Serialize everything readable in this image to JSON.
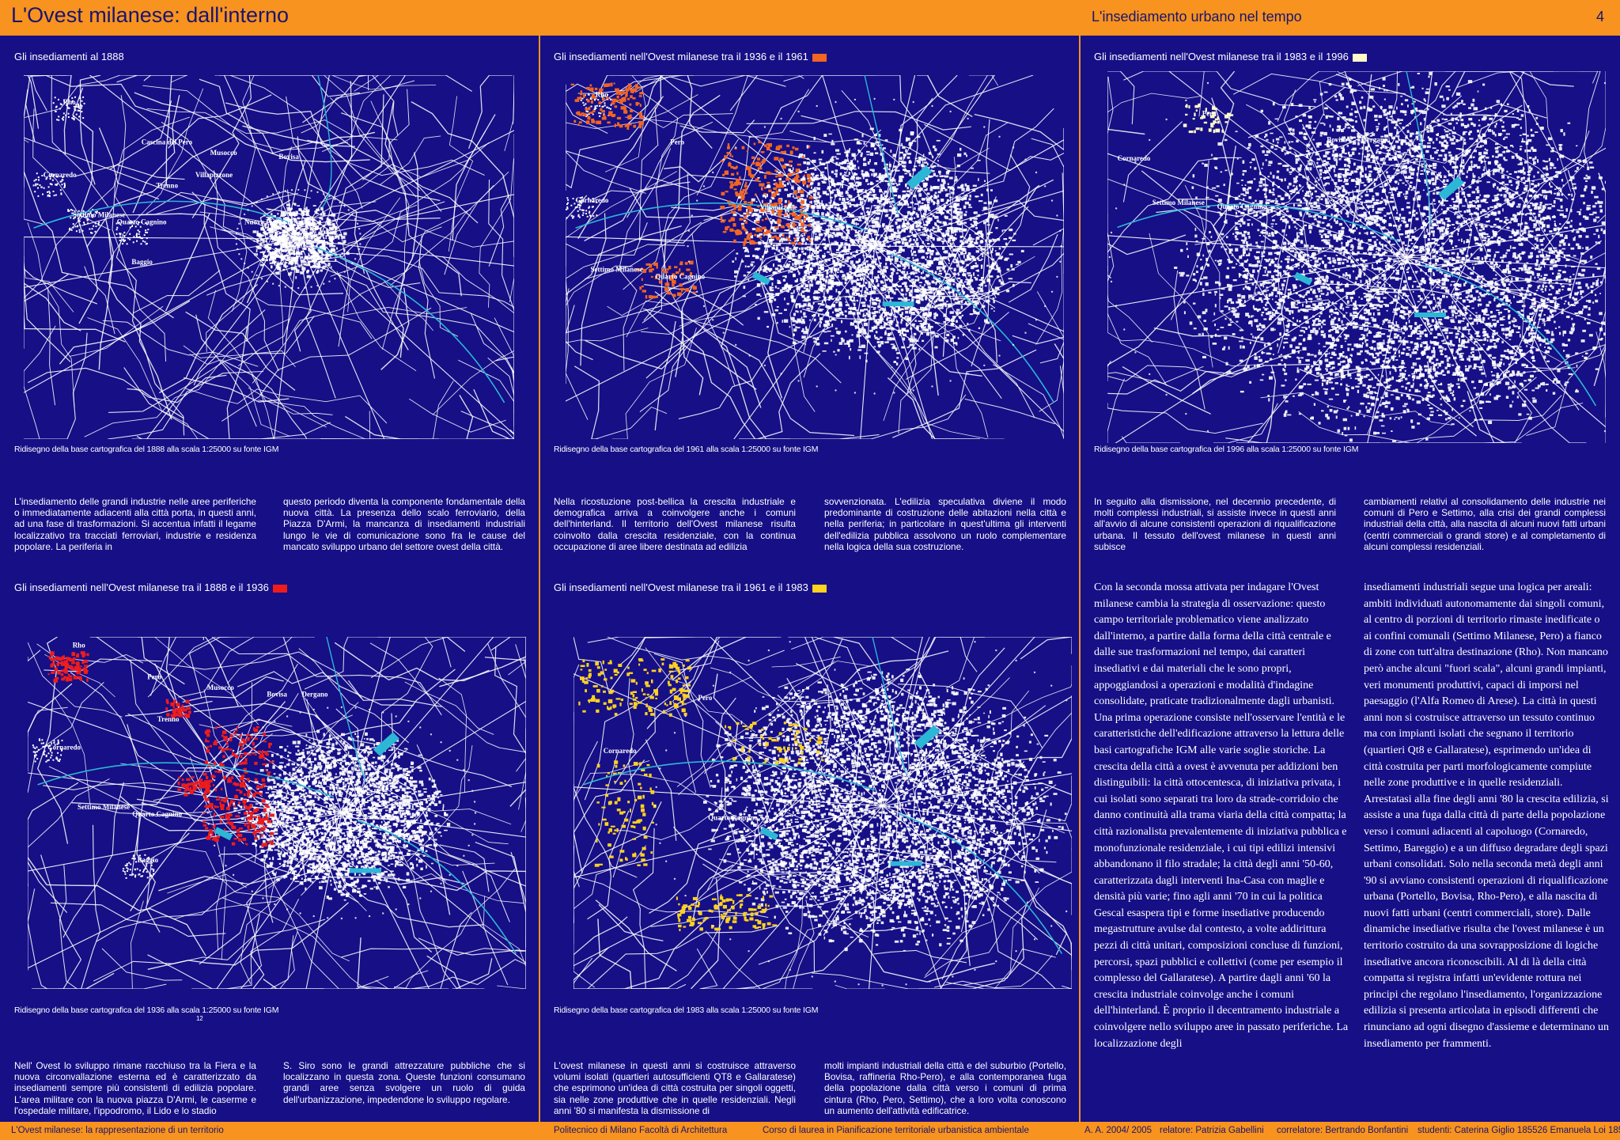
{
  "header": {
    "title": "L'Ovest milanese: dall'interno",
    "section": "L'insediamento urbano nel tempo",
    "page_number": "4"
  },
  "panels": {
    "p1888": {
      "title": "Gli insediamenti al 1888",
      "caption": "Ridisegno della base cartografica del 1888 alla scala 1:25000 su fonte IGM",
      "labels": [
        "Rho",
        "Cascina del Pero",
        "Musocco",
        "Bovisa",
        "Cornaredo",
        "Trenno",
        "Villapizzone",
        "Settimo Milanese",
        "Quarto Cagnino",
        "Nuova Piazza d'Armi",
        "Vecchia d'Armi",
        "Baggio"
      ]
    },
    "p1936": {
      "title": "Gli insediamenti nell'Ovest milanese tra il 1888 e il 1936",
      "swatch": "#ee1c1c",
      "caption": "Ridisegno della base cartografica del 1936 alla scala 1:25000 su fonte IGM",
      "caption_sub": "12",
      "labels": [
        "Rho",
        "Pero",
        "Musocco",
        "Bovisa",
        "Dergano",
        "Cornaredo",
        "Trenno",
        "Settimo Milanese",
        "Quarto Cagnino",
        "Baggio"
      ]
    },
    "p1961": {
      "title": "Gli insediamenti nell'Ovest milanese tra il 1936 e il 1961",
      "swatch": "#f26522",
      "caption": "Ridisegno della base cartografica del 1961 alla scala 1:25000 su fonte IGM",
      "labels": [
        "Rho",
        "Pero",
        "Cornaredo",
        "Villapizzone",
        "Settimo Milanese",
        "Quarto Cagnino"
      ]
    },
    "p1983": {
      "title": "Gli insediamenti nell'Ovest milanese tra il 1961 e il 1983",
      "swatch": "#ffd21f",
      "caption": "Ridisegno della base cartografica  del 1983 alla scala 1:25000 su fonte IGM",
      "labels": [
        "Pero",
        "Cornaredo",
        "Quarto Cagnino"
      ]
    },
    "p1996": {
      "title": "Gli insediamenti nell'Ovest milanese tra il 1983 e il 1996",
      "swatch": "#fffbc8",
      "caption": "Ridisegno della base cartografica  del 1996 alla scala 1:25000 su fonte IGM",
      "labels": [
        "Pero",
        "Bovisa",
        "Dergano",
        "Cornaredo",
        "Settimo Milanese",
        "Quarto Cagnino"
      ]
    }
  },
  "texts": {
    "t1888_left": "L'insediamento delle grandi industrie nelle aree periferiche o immediatamente adiacenti alla città porta, in questi anni, ad una fase di trasformazioni. Si accentua infatti il legame localizzativo tra tracciati ferroviari, industrie e residenza popolare. La periferia in",
    "t1888_right": "questo periodo diventa la componente fondamentale della nuova città. La presenza dello scalo ferroviario, della Piazza D'Armi, la mancanza di insediamenti industriali lungo le vie di comunicazione sono fra le cause del mancato sviluppo urbano del settore ovest della città.",
    "t1961_left": "Nella ricostuzione post-bellica la crescita industriale e demografica arriva a coinvolgere anche i comuni dell'hinterland. Il territorio dell'Ovest milanese risulta coinvolto dalla crescita residenziale, con la continua occupazione di aree libere destinata ad edilizia",
    "t1961_right": "sovvenzionata. L'edilizia speculativa diviene il modo predominante di costruzione delle abitazioni nella città e nella periferia; in particolare in quest'ultima gli interventi dell'edilizia pubblica assolvono un ruolo complementare nella logica della sua costruzione.",
    "t1996_left": "In seguito alla dismissione, nel decennio precedente, di molti complessi industriali, si assiste invece in questi anni all'avvio di alcune consistenti operazioni di riqualificazione urbana. Il tessuto dell'ovest milanese in questi anni subisce",
    "t1996_right": "cambiamenti relativi al consolidamento delle industrie nei comuni di Pero e Settimo, alla crisi dei grandi complessi industriali della città, alla nascita di alcuni nuovi fatti urbani (centri commerciali o grandi store) e al completamento di alcuni complessi residenziali.",
    "t1936_left": "Nell' Ovest lo sviluppo rimane racchiuso tra la Fiera e la nuova circonvallazione esterna ed è caratterizzato da insediamenti sempre più consistenti di edilizia popolare. L'area militare con la nuova piazza D'Armi, le caserme e l'ospedale militare, l'ippodromo, il Lido e lo stadio",
    "t1936_right": "S. Siro sono le grandi attrezzature pubbliche che si localizzano in questa zona. Queste funzioni consumano grandi aree senza svolgere un ruolo di guida dell'urbanizzazione, impedendone lo sviluppo regolare.",
    "t1983_left": "L'ovest milanese in questi anni si costruisce attraverso volumi isolati (quartieri autosufficienti QT8 e Gallaratese) che esprimono un'idea di città costruita per singoli oggetti, sia nelle zone produttive che in quelle residenziali. Negli anni '80 si manifesta la dismissione di",
    "t1983_right": "molti impianti industriali della città e del suburbio (Portello, Bovisa, raffineria Rho-Pero), e alla contemporanea fuga della popolazione dalla città verso i comuni di prima cintura (Rho, Pero, Settimo), che a loro volta conoscono un aumento dell'attività edificatrice.",
    "main_left": "Con la seconda mossa attivata per indagare l'Ovest milanese cambia la strategia di osservazione: questo campo territoriale problematico viene analizzato dall'interno, a partire dalla forma della città centrale e dalle sue trasformazioni nel tempo, dai caratteri insediativi e dai materiali che le sono propri, appoggiandosi a operazioni e modalità d'indagine consolidate, praticate tradizionalmente dagli urbanisti. Una prima operazione consiste nell'osservare l'entità e le caratteristiche dell'edificazione attraverso la lettura delle basi cartografiche IGM alle varie soglie storiche. La crescita della città a ovest è avvenuta per addizioni ben distinguibili: la città ottocentesca, di iniziativa privata, i cui isolati sono separati tra loro da strade-corridoio che danno continuità alla trama viaria della città compatta; la città razionalista prevalentemente di iniziativa pubblica e monofunzionale residenziale, i cui tipi edilizi intensivi abbandonano il filo stradale; la città degli anni '50-60, caratterizzata dagli interventi Ina-Casa con maglie e densità più varie; fino agli anni '70 in cui la politica Gescal esaspera tipi e forme insediative producendo megastrutture avulse dal contesto, a volte addirittura pezzi di città unitari, composizioni concluse di funzioni, percorsi, spazi pubblici e collettivi (come per esempio il complesso del Gallaratese). A partire dagli anni '60 la crescita industriale coinvolge anche i comuni dell'hinterland. È proprio il decentramento industriale a coinvolgere nello sviluppo aree in passato periferiche. La localizzazione degli",
    "main_right": "insediamenti industriali segue una logica per areali: ambiti individuati autonomamente dai singoli comuni, al centro di porzioni di territorio rimaste inedificate o ai confini comunali (Settimo Milanese, Pero) a fianco di zone con tutt'altra destinazione (Rho). Non mancano però anche alcuni \"fuori scala\", alcuni grandi impianti, veri monumenti produttivi, capaci di imporsi nel paesaggio (l'Alfa Romeo di Arese). La città in questi anni non si costruisce attraverso un tessuto continuo ma con impianti isolati che segnano il territorio (quartieri Qt8 e Gallaratese), esprimendo un'idea di città costruita per parti morfologicamente compiute nelle zone produttive e in quelle residenziali. Arrestatasi alla fine degli anni '80 la crescita edilizia, si assiste a una fuga dalla città di parte della popolazione verso i comuni adiacenti al capoluogo (Cornaredo, Settimo, Bareggio) e a un diffuso degradare degli spazi urbani consolidati. Solo nella seconda metà degli anni '90 si avviano consistenti operazioni di riqualificazione urbana (Portello, Bovisa, Rho-Pero), e alla nascita di nuovi fatti urbani (centri commerciali, store). Dalle dinamiche insediative risulta che l'ovest milanese è un territorio costruito da una sovrapposizione di logiche insediative ancora riconoscibili. Al di là della città compatta si registra infatti un'evidente rottura nei principi che regolano l'insediamento, l'organizzazione edilizia si presenta articolata in episodi differenti che rinunciano ad ogni disegno d'assieme e determinano un insediamento per frammenti."
  },
  "footer": {
    "left": "L'Ovest milanese: la rappresentazione di un territorio",
    "school": "Politecnico di Milano  Facoltà di Architettura",
    "course": "Corso di laurea in Pianificazione territoriale urbanistica  ambientale",
    "year": "A. A.  2004/ 2005",
    "relatore": "relatore: Patrizia Gabellini",
    "correlatore": "correlatore: Bertrando Bonfantini",
    "students": "studenti: Caterina Giglio 185526   Emanuela Loi 185541"
  },
  "colors": {
    "background": "#160f86",
    "orange": "#f7931e",
    "roads": "#ffffff",
    "water": "#2cb7d6",
    "red": "#ee1c1c",
    "orange_red": "#f26522",
    "yellow": "#ffd21f",
    "pale": "#fffbc8"
  }
}
